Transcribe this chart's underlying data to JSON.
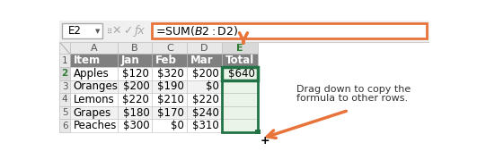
{
  "formula_bar_cell": "E2",
  "formula_bar_formula": "=SUM($B2:$D2)",
  "col_headers": [
    "A",
    "B",
    "C",
    "D",
    "E"
  ],
  "row_headers": [
    "1",
    "2",
    "3",
    "4",
    "5",
    "6"
  ],
  "header_row": [
    "Item",
    "Jan",
    "Feb",
    "Mar",
    "Total"
  ],
  "rows": [
    [
      "Apples",
      "$120",
      "$320",
      "$200",
      "$640"
    ],
    [
      "Oranges",
      "$200",
      "$190",
      "$0",
      ""
    ],
    [
      "Lemons",
      "$220",
      "$210",
      "$220",
      ""
    ],
    [
      "Grapes",
      "$180",
      "$170",
      "$240",
      ""
    ],
    [
      "Peaches",
      "$300",
      "$0",
      "$310",
      ""
    ]
  ],
  "annotation_line1": "Drag down to copy the",
  "annotation_line2": "formula to other rows.",
  "bg_color": "#ffffff",
  "header_bg": "#808080",
  "header_text_color": "#ffffff",
  "row2_bg": "#ffffff",
  "row3_bg": "#f2f2f2",
  "row4_bg": "#ffffff",
  "row5_bg": "#f2f2f2",
  "row6_bg": "#ffffff",
  "formula_bar_border": "#e8743b",
  "selected_col_header_bg": "#d9d9d9",
  "selected_col_header_text": "#2e7d32",
  "selected_col_fill": "#eaf4e8",
  "selected_border_color": "#217346",
  "arrow_color": "#e8743b",
  "grid_color": "#c0c0c0",
  "cell_text_color": "#000000",
  "row2_num_bold": true,
  "col_header_bg": "#e8e8e8",
  "row_header_bg": "#e8e8e8",
  "corner_triangle_color": "#9e9e9e"
}
